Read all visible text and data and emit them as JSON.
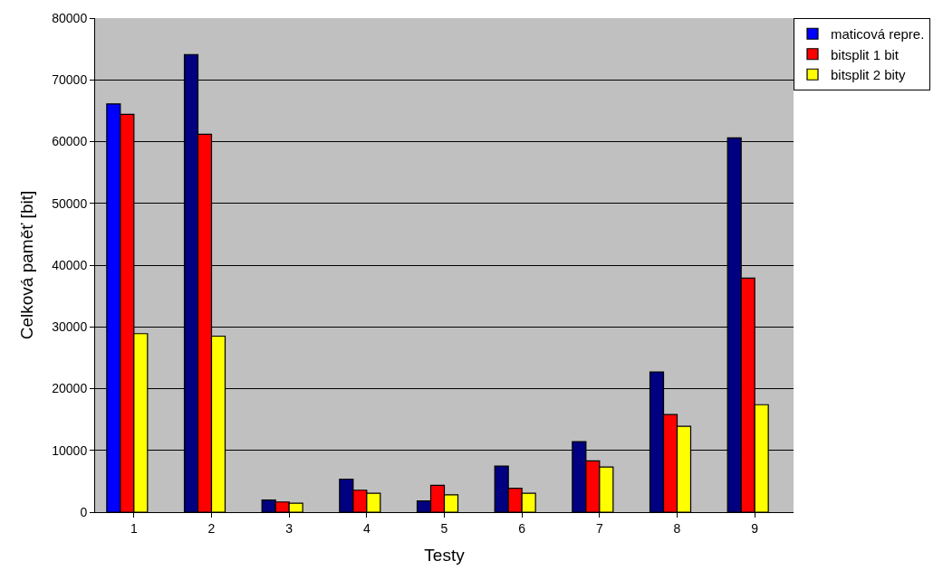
{
  "chart_data": {
    "type": "bar",
    "xlabel": "Testy",
    "ylabel": "Celková paměť [bit]",
    "categories": [
      "1",
      "2",
      "3",
      "4",
      "5",
      "6",
      "7",
      "8",
      "9"
    ],
    "series": [
      {
        "name": "maticová repre.",
        "color": "#0000ff",
        "colors": [
          "#0000ff",
          "#000080",
          "#000080",
          "#000080",
          "#000080",
          "#000080",
          "#000080",
          "#000080",
          "#000080"
        ],
        "values": [
          66100,
          74100,
          1950,
          5350,
          1800,
          7450,
          11400,
          22700,
          60600
        ]
      },
      {
        "name": "bitsplit 1 bit",
        "color": "#ff0000",
        "values": [
          64400,
          61200,
          1650,
          3550,
          4350,
          3850,
          8300,
          15800,
          37900
        ]
      },
      {
        "name": "bitsplit 2 bity",
        "color": "#ffff00",
        "values": [
          28900,
          28500,
          1450,
          3050,
          2800,
          3050,
          7300,
          13900,
          17400
        ]
      }
    ],
    "ylim": [
      0,
      80000
    ],
    "yticks": [
      0,
      10000,
      20000,
      30000,
      40000,
      50000,
      60000,
      70000,
      80000
    ],
    "grid": "y",
    "legend": "top right"
  }
}
